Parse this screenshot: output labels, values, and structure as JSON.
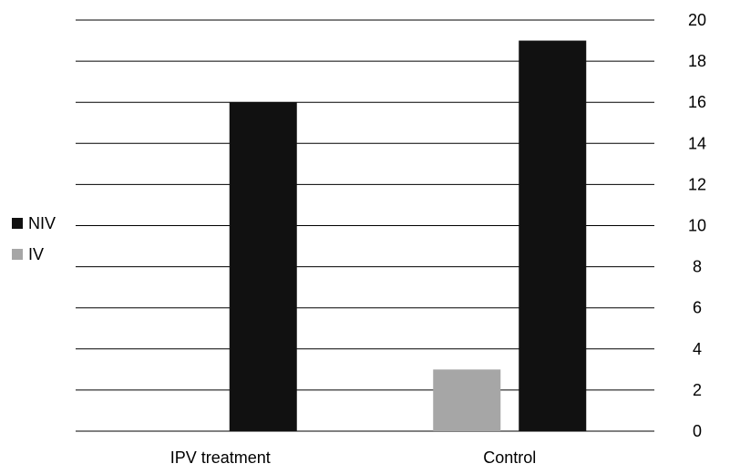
{
  "chart_data": {
    "type": "bar",
    "categories": [
      "IPV treatment",
      "Control"
    ],
    "series": [
      {
        "name": "IV",
        "values": [
          0,
          3
        ],
        "color": "#a6a6a6"
      },
      {
        "name": "NIV",
        "values": [
          16,
          19
        ],
        "color": "#111111"
      }
    ],
    "ylim": [
      0,
      20
    ],
    "yticks": [
      0,
      2,
      4,
      6,
      8,
      10,
      12,
      14,
      16,
      18,
      20
    ],
    "y_axis_side": "right",
    "grid": true,
    "legend": {
      "placement": "left",
      "entries": [
        {
          "label": "NIV",
          "color": "#111111"
        },
        {
          "label": "IV",
          "color": "#a6a6a6"
        }
      ]
    }
  }
}
